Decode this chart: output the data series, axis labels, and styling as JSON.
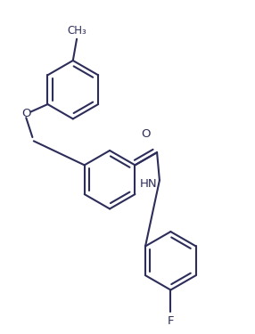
{
  "bg_color": "#ffffff",
  "line_color": "#2d2d5a",
  "line_width": 1.5,
  "font_size": 8.5,
  "figsize": [
    2.86,
    3.75
  ],
  "dpi": 100,
  "xlim": [
    0,
    10
  ],
  "ylim": [
    0,
    13
  ]
}
